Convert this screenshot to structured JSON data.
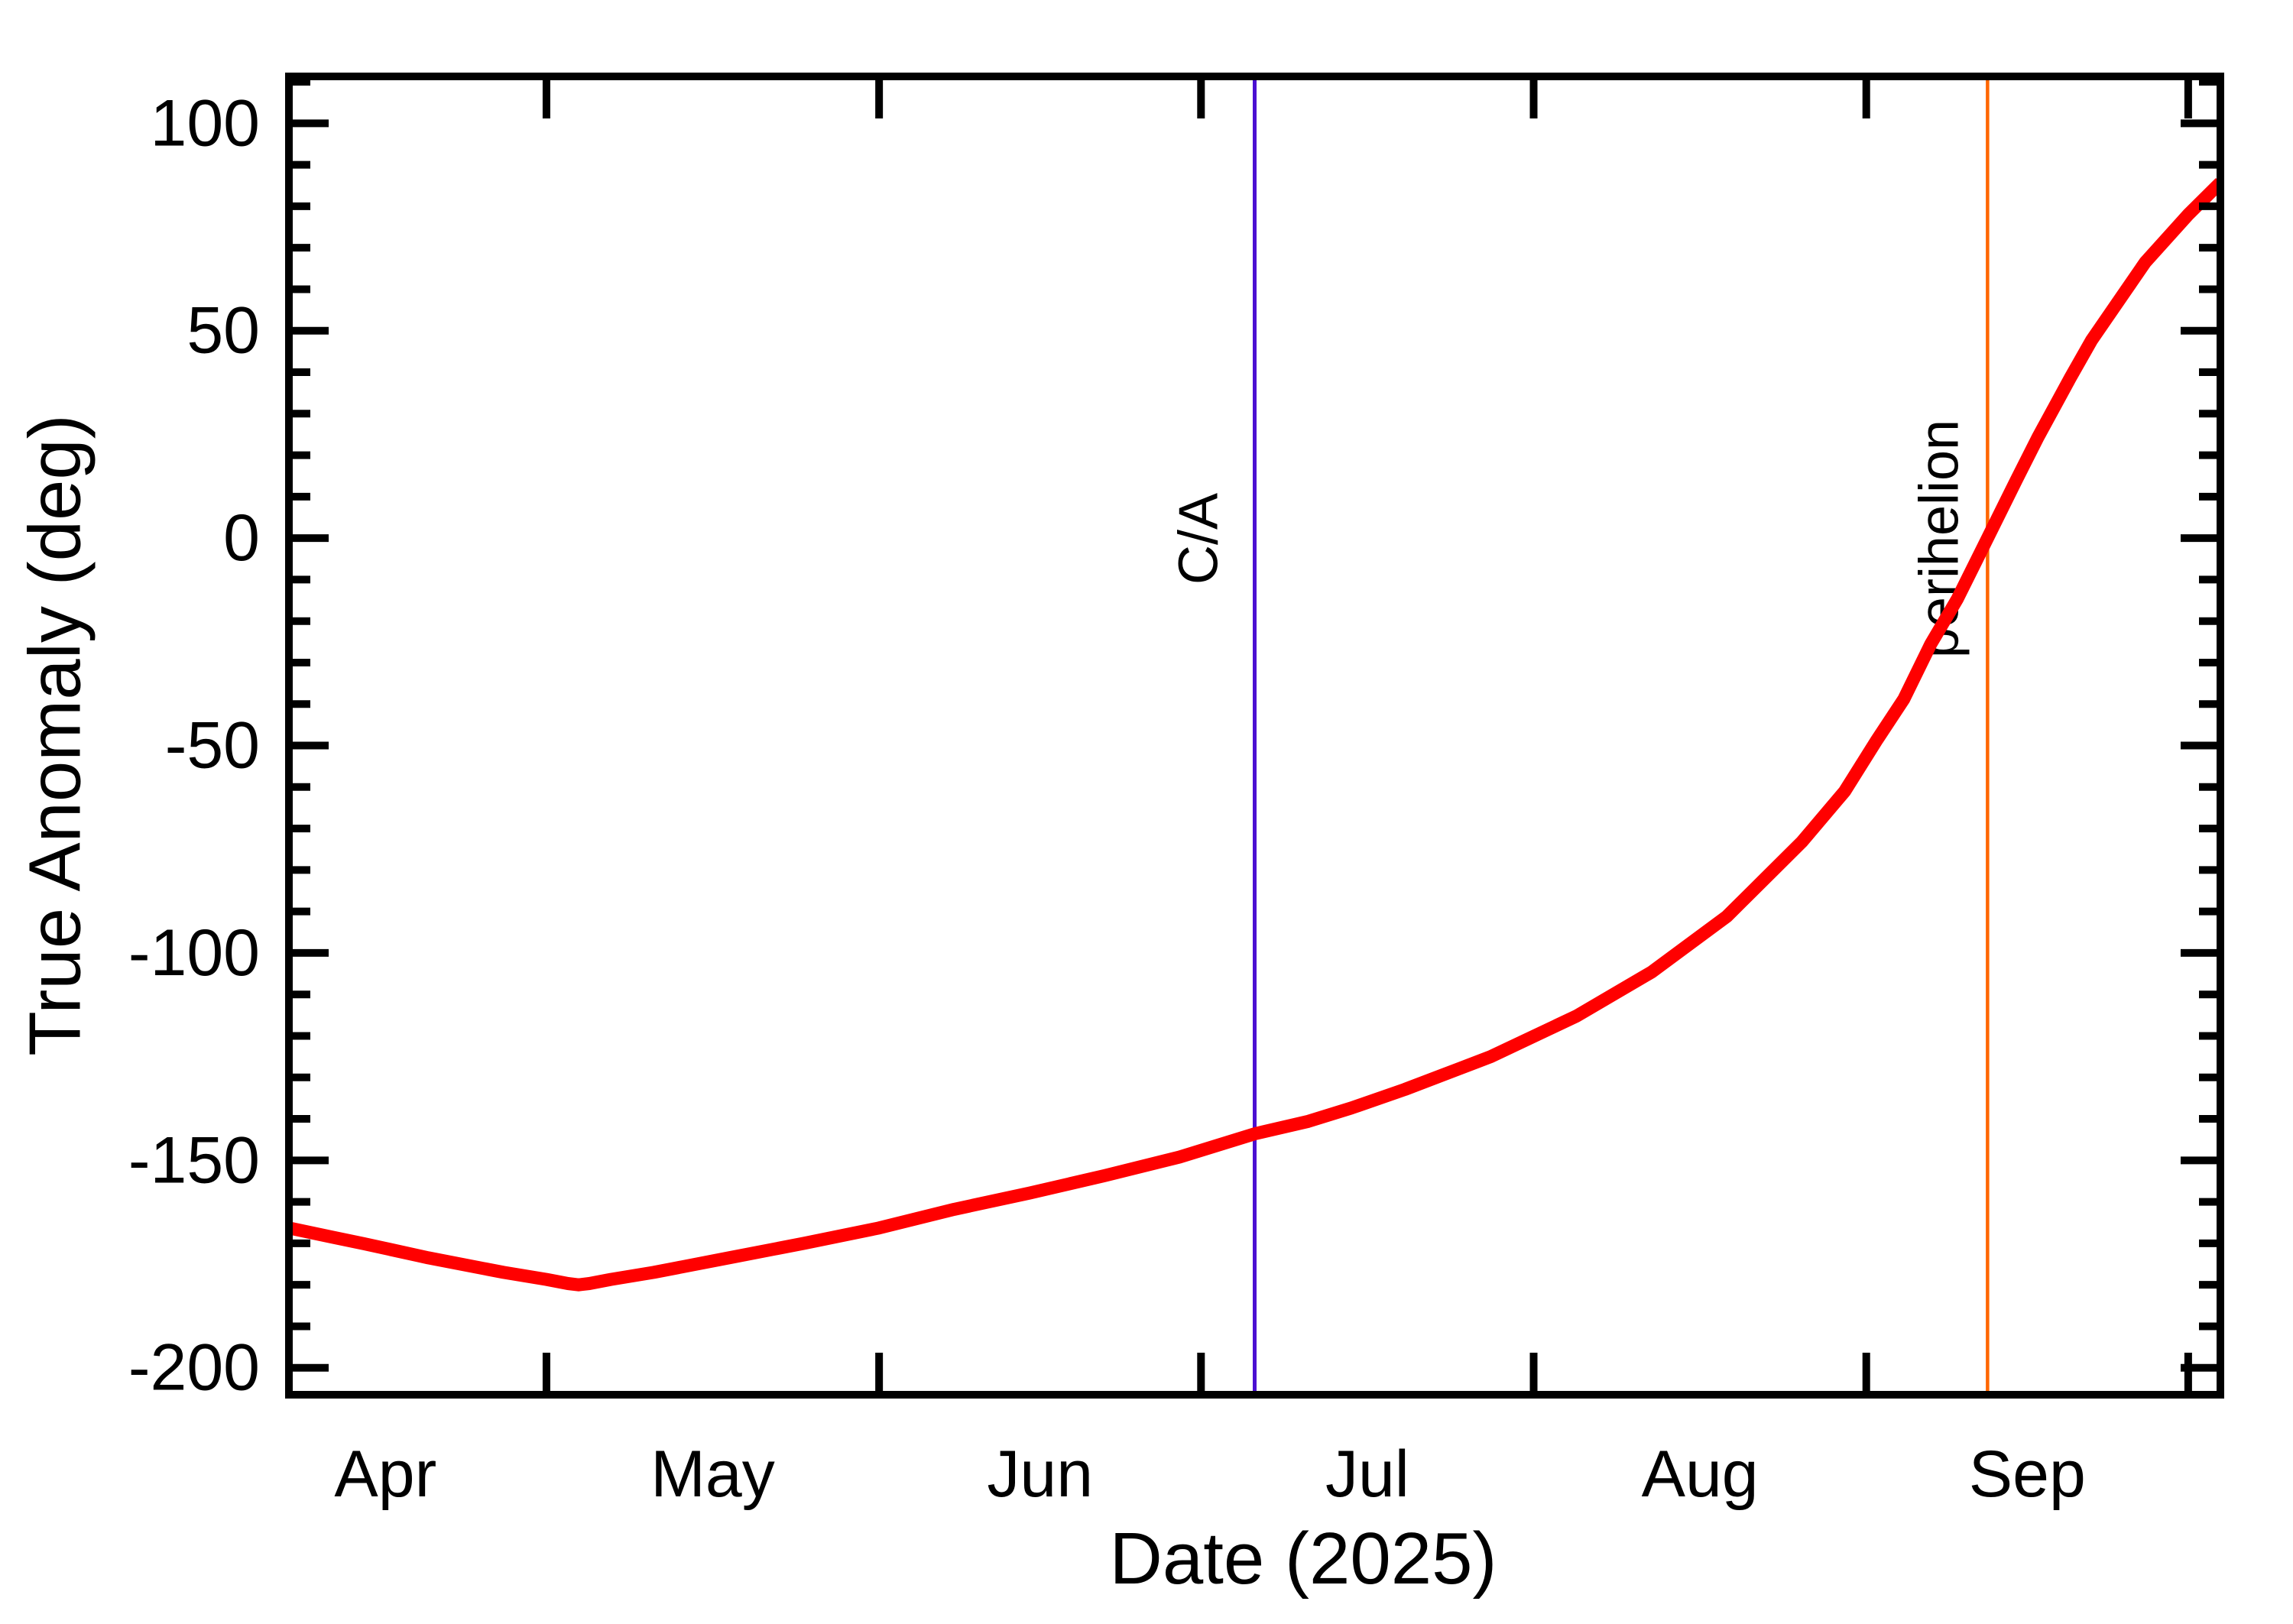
{
  "figure": {
    "background": "#ffffff",
    "xlabel": "Date (2025)",
    "ylabel": "True Anomaly (deg)"
  },
  "chart_data": {
    "type": "line",
    "title": "",
    "xlabel": "Date (2025)",
    "ylabel": "True Anomaly (deg)",
    "grid": false,
    "legend": "none",
    "x_axis": {
      "unit": "days from left edge of axis (early April 2025 through early October 2025)",
      "range_days": [
        0,
        180
      ],
      "month_boundary_tick_days": [
        24,
        55,
        85,
        116,
        147,
        177
      ],
      "month_labels": [
        {
          "label": "Apr",
          "mid_day": 9
        },
        {
          "label": "May",
          "mid_day": 39.5
        },
        {
          "label": "Jun",
          "mid_day": 70
        },
        {
          "label": "Jul",
          "mid_day": 100.5
        },
        {
          "label": "Aug",
          "mid_day": 131.5
        },
        {
          "label": "Sep",
          "mid_day": 162
        }
      ]
    },
    "y_axis": {
      "min": -206.5,
      "max": 111.3,
      "major_ticks": [
        100,
        50,
        0,
        -50,
        -100,
        -150,
        -200
      ],
      "major_tick_labels": [
        "100",
        "50",
        "0",
        "-50",
        "-100",
        "-150",
        "-200"
      ],
      "minor_step": 10
    },
    "series": [
      {
        "name": "true-anomaly",
        "color": "#ff0000",
        "stroke_width": 17,
        "points_day_deg": [
          [
            0,
            -166.3
          ],
          [
            4,
            -168.5
          ],
          [
            7,
            -170.1
          ],
          [
            13,
            -173.5
          ],
          [
            20,
            -177.0
          ],
          [
            24,
            -178.7
          ],
          [
            26,
            -179.7
          ],
          [
            27,
            -180.0
          ],
          [
            28,
            -179.7
          ],
          [
            30,
            -178.7
          ],
          [
            34,
            -177.0
          ],
          [
            41,
            -173.5
          ],
          [
            48,
            -170.0
          ],
          [
            55,
            -166.3
          ],
          [
            62,
            -161.8
          ],
          [
            69,
            -157.9
          ],
          [
            76,
            -153.7
          ],
          [
            83,
            -149.2
          ],
          [
            90,
            -143.6
          ],
          [
            95,
            -140.6
          ],
          [
            99,
            -137.4
          ],
          [
            104,
            -132.9
          ],
          [
            112,
            -125.0
          ],
          [
            120,
            -115.2
          ],
          [
            127,
            -104.6
          ],
          [
            134,
            -91.2
          ],
          [
            141,
            -73.2
          ],
          [
            145,
            -61.0
          ],
          [
            148,
            -48.6
          ],
          [
            150.5,
            -38.8
          ],
          [
            153,
            -25.6
          ],
          [
            155.5,
            -14.6
          ],
          [
            158.3,
            0.0
          ],
          [
            161,
            14.1
          ],
          [
            163,
            24.3
          ],
          [
            166,
            38.6
          ],
          [
            168,
            47.7
          ],
          [
            173,
            66.5
          ],
          [
            177,
            78.0
          ],
          [
            180,
            85.7
          ]
        ]
      }
    ],
    "events": [
      {
        "name": "closest-approach",
        "label": "C/A",
        "day": 90,
        "color": "#4b0fd2",
        "stroke_width": 5
      },
      {
        "name": "perihelion",
        "label": "perihelion",
        "day": 158.3,
        "color": "#ff6600",
        "stroke_width": 4.5
      }
    ]
  }
}
